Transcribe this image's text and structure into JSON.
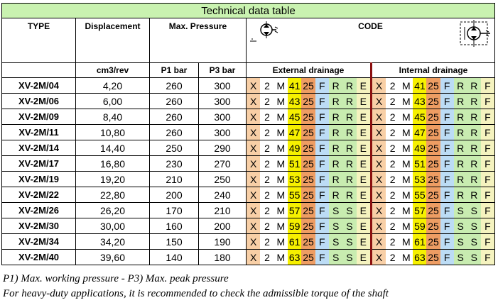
{
  "title": "Technical data table",
  "headers": {
    "type": "TYPE",
    "displacement": "Displacement",
    "max_pressure": "Max. Pressure",
    "code": "CODE",
    "unit_displacement": "cm3/rev",
    "p1": "P1 bar",
    "p3": "P3 bar",
    "external": "External drainage",
    "internal": "Internal drainage"
  },
  "rows": [
    {
      "type": "XV-2M/04",
      "disp": "4,20",
      "p1": "260",
      "p3": "300",
      "ext": [
        "X",
        "2",
        "M",
        "41",
        "25",
        "F",
        "R",
        "R",
        "E"
      ],
      "int": [
        "X",
        "2",
        "M",
        "41",
        "25",
        "F",
        "R",
        "R",
        "F"
      ]
    },
    {
      "type": "XV-2M/06",
      "disp": "6,00",
      "p1": "260",
      "p3": "300",
      "ext": [
        "X",
        "2",
        "M",
        "43",
        "25",
        "F",
        "R",
        "R",
        "E"
      ],
      "int": [
        "X",
        "2",
        "M",
        "43",
        "25",
        "F",
        "R",
        "R",
        "F"
      ]
    },
    {
      "type": "XV-2M/09",
      "disp": "8,40",
      "p1": "260",
      "p3": "300",
      "ext": [
        "X",
        "2",
        "M",
        "45",
        "25",
        "F",
        "R",
        "R",
        "E"
      ],
      "int": [
        "X",
        "2",
        "M",
        "45",
        "25",
        "F",
        "R",
        "R",
        "F"
      ]
    },
    {
      "type": "XV-2M/11",
      "disp": "10,80",
      "p1": "260",
      "p3": "300",
      "ext": [
        "X",
        "2",
        "M",
        "47",
        "25",
        "F",
        "R",
        "R",
        "E"
      ],
      "int": [
        "X",
        "2",
        "M",
        "47",
        "25",
        "F",
        "R",
        "R",
        "F"
      ]
    },
    {
      "type": "XV-2M/14",
      "disp": "14,40",
      "p1": "250",
      "p3": "290",
      "ext": [
        "X",
        "2",
        "M",
        "49",
        "25",
        "F",
        "R",
        "R",
        "E"
      ],
      "int": [
        "X",
        "2",
        "M",
        "49",
        "25",
        "F",
        "R",
        "R",
        "F"
      ]
    },
    {
      "type": "XV-2M/17",
      "disp": "16,80",
      "p1": "230",
      "p3": "270",
      "ext": [
        "X",
        "2",
        "M",
        "51",
        "25",
        "F",
        "R",
        "R",
        "E"
      ],
      "int": [
        "X",
        "2",
        "M",
        "51",
        "25",
        "F",
        "R",
        "R",
        "F"
      ]
    },
    {
      "type": "XV-2M/19",
      "disp": "19,20",
      "p1": "210",
      "p3": "250",
      "ext": [
        "X",
        "2",
        "M",
        "53",
        "25",
        "F",
        "R",
        "R",
        "E"
      ],
      "int": [
        "X",
        "2",
        "M",
        "53",
        "25",
        "F",
        "R",
        "R",
        "F"
      ]
    },
    {
      "type": "XV-2M/22",
      "disp": "22,80",
      "p1": "200",
      "p3": "240",
      "ext": [
        "X",
        "2",
        "M",
        "55",
        "25",
        "F",
        "R",
        "R",
        "E"
      ],
      "int": [
        "X",
        "2",
        "M",
        "55",
        "25",
        "F",
        "R",
        "R",
        "F"
      ]
    },
    {
      "type": "XV-2M/26",
      "disp": "26,20",
      "p1": "170",
      "p3": "210",
      "ext": [
        "X",
        "2",
        "M",
        "57",
        "25",
        "F",
        "S",
        "S",
        "E"
      ],
      "int": [
        "X",
        "2",
        "M",
        "57",
        "25",
        "F",
        "S",
        "S",
        "F"
      ]
    },
    {
      "type": "XV-2M/30",
      "disp": "30,00",
      "p1": "160",
      "p3": "200",
      "ext": [
        "X",
        "2",
        "M",
        "59",
        "25",
        "F",
        "S",
        "S",
        "E"
      ],
      "int": [
        "X",
        "2",
        "M",
        "59",
        "25",
        "F",
        "S",
        "S",
        "F"
      ]
    },
    {
      "type": "XV-2M/34",
      "disp": "34,20",
      "p1": "150",
      "p3": "190",
      "ext": [
        "X",
        "2",
        "M",
        "61",
        "25",
        "F",
        "S",
        "S",
        "E"
      ],
      "int": [
        "X",
        "2",
        "M",
        "61",
        "25",
        "F",
        "S",
        "S",
        "F"
      ]
    },
    {
      "type": "XV-2M/40",
      "disp": "39,60",
      "p1": "140",
      "p3": "180",
      "ext": [
        "X",
        "2",
        "M",
        "63",
        "25",
        "F",
        "S",
        "S",
        "E"
      ],
      "int": [
        "X",
        "2",
        "M",
        "63",
        "25",
        "F",
        "S",
        "S",
        "F"
      ]
    }
  ],
  "footnotes": {
    "line1": "P1) Max. working pressure - P3) Max. peak pressure",
    "line2": "For heavy-duty applications, it is recommended to check the admissible torque of the shaft"
  },
  "colors": {
    "title_bg": "#c9f2b0",
    "x": "#f8cfa6",
    "size": "#f6f000",
    "25": "#ee9d63",
    "f": "#bcdcf5",
    "rs": "#c8ecb0",
    "last": "#f5f3bf",
    "divider": "#8b1010"
  },
  "icons": {
    "external": "hydraulic-motor-external-drain-icon",
    "internal": "hydraulic-motor-internal-drain-icon"
  }
}
